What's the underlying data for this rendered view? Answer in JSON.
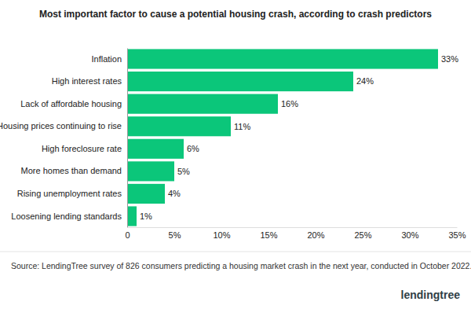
{
  "chart_data": {
    "type": "bar",
    "orientation": "horizontal",
    "title": "Most important factor to cause a potential housing crash, according to crash predictors",
    "categories": [
      "Inflation",
      "High interest rates",
      "Lack of affordable housing",
      "Housing prices continuing to rise",
      "High foreclosure rate",
      "More homes than demand",
      "Rising unemployment rates",
      "Loosening lending standards"
    ],
    "values": [
      33,
      24,
      16,
      11,
      6,
      5,
      4,
      1
    ],
    "value_labels": [
      "33%",
      "24%",
      "16%",
      "11%",
      "6%",
      "5%",
      "4%",
      "1%"
    ],
    "data_labels": true,
    "color": "#0bc67a",
    "xlim": [
      0,
      35
    ],
    "xticks": [
      0,
      {
        "value": 5,
        "label": "5%"
      },
      {
        "value": 10,
        "label": "10%"
      },
      {
        "value": 15,
        "label": "15%"
      },
      {
        "value": 20,
        "label": "20%"
      },
      {
        "value": 25,
        "label": "25%"
      },
      {
        "value": 30,
        "label": "30%"
      },
      {
        "value": 35,
        "label": "35%"
      }
    ],
    "grid": false,
    "source": "Source: LendingTree survey of 826 consumers predicting a housing market crash in the next year, conducted in October 2022.",
    "logo": "lendingtree"
  }
}
